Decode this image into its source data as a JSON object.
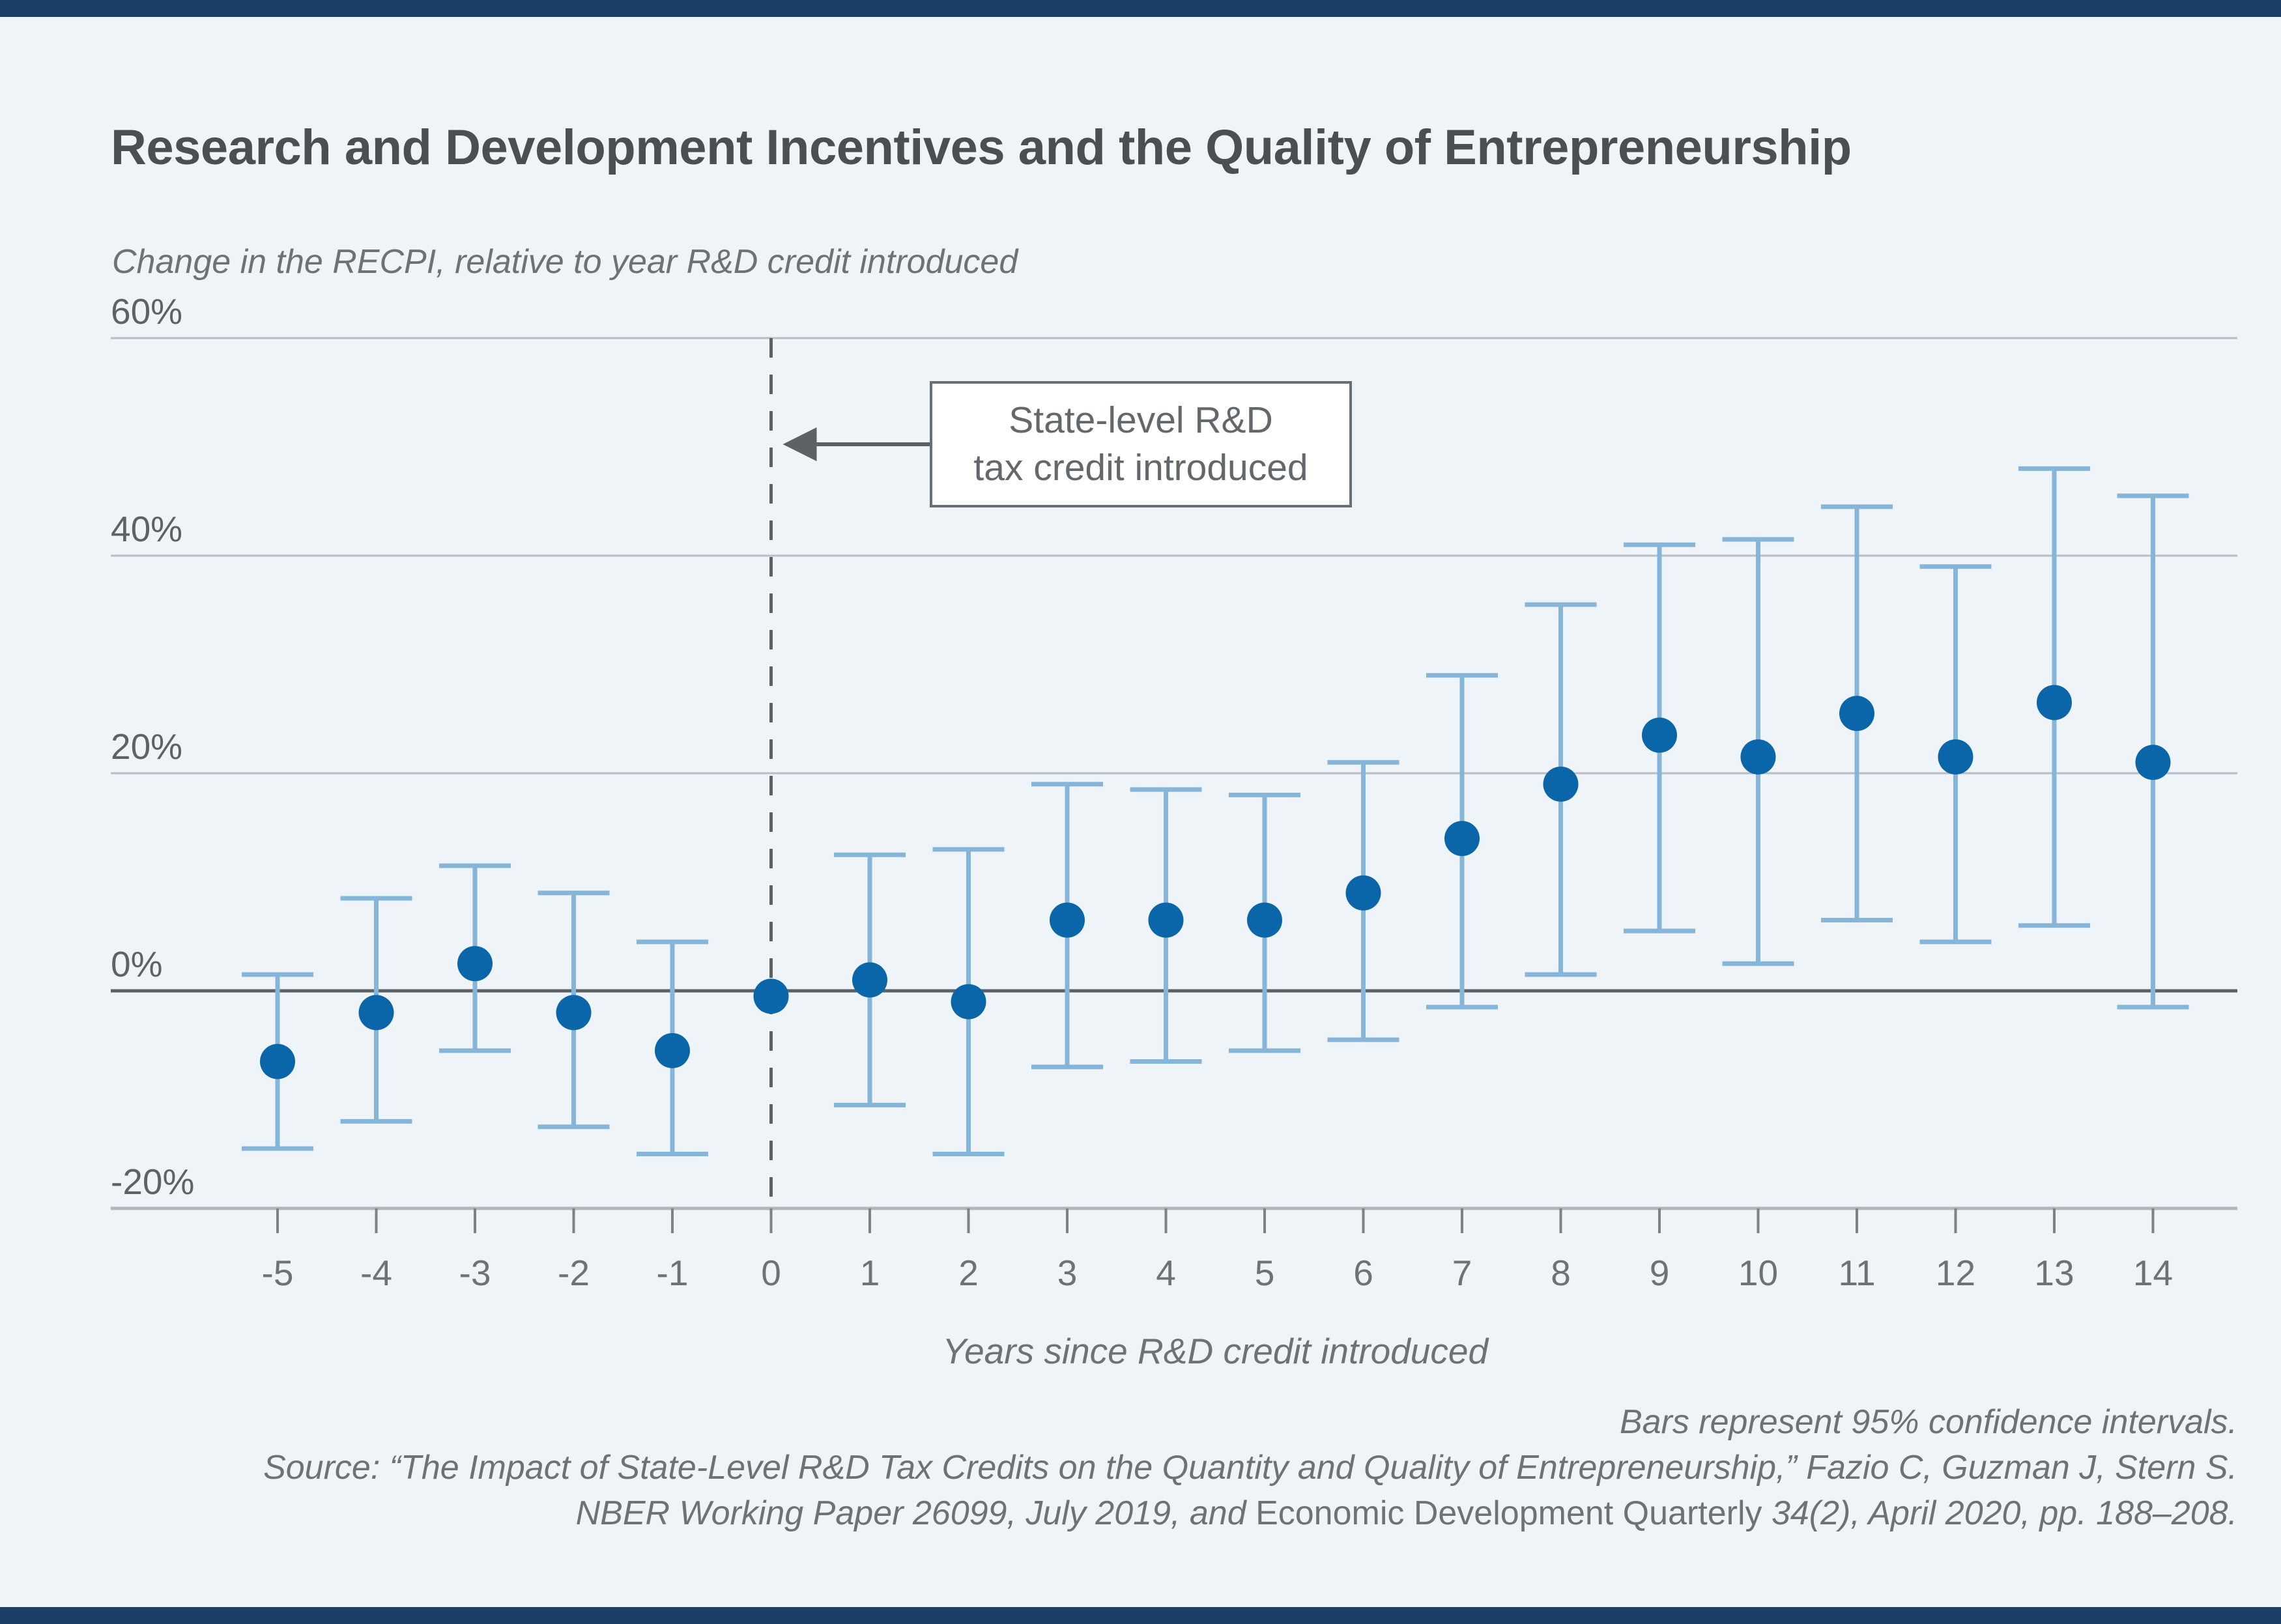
{
  "page": {
    "title": "Research and Development Incentives and the Quality of Entrepreneurship",
    "background_color": "#eff4f9",
    "accent_bar_color": "#1a4068"
  },
  "chart_data": {
    "type": "scatter",
    "title": "Research and Development Incentives and the Quality of Entrepreneurship",
    "y_axis_title": "Change in the RECPI, relative to year R&D credit introduced",
    "x_axis_label": "Years since R&D credit introduced",
    "legend_position": "none",
    "grid": "horizontal",
    "ylim": [
      -20,
      60
    ],
    "y_ticks": [
      {
        "value": 60,
        "label": "60%"
      },
      {
        "value": 40,
        "label": "40%"
      },
      {
        "value": 20,
        "label": "20%"
      },
      {
        "value": 0,
        "label": "0%"
      },
      {
        "value": -20,
        "label": "-20%"
      }
    ],
    "x_ticks": [
      -5,
      -4,
      -3,
      -2,
      -1,
      0,
      1,
      2,
      3,
      4,
      5,
      6,
      7,
      8,
      9,
      10,
      11,
      12,
      13,
      14
    ],
    "series": [
      {
        "name": "Change in RECPI point estimate with 95% confidence interval",
        "points": [
          {
            "x": -5,
            "y": -6.5,
            "ci_low": -14.5,
            "ci_high": 1.5
          },
          {
            "x": -4,
            "y": -2,
            "ci_low": -12,
            "ci_high": 8.5
          },
          {
            "x": -3,
            "y": 2.5,
            "ci_low": -5.5,
            "ci_high": 11.5
          },
          {
            "x": -2,
            "y": -2,
            "ci_low": -12.5,
            "ci_high": 9
          },
          {
            "x": -1,
            "y": -5.5,
            "ci_low": -15,
            "ci_high": 4.5
          },
          {
            "x": 0,
            "y": -0.5,
            "ci_low": null,
            "ci_high": null
          },
          {
            "x": 1,
            "y": 1,
            "ci_low": -10.5,
            "ci_high": 12.5
          },
          {
            "x": 2,
            "y": -1,
            "ci_low": -15,
            "ci_high": 13
          },
          {
            "x": 3,
            "y": 6.5,
            "ci_low": -7,
            "ci_high": 19
          },
          {
            "x": 4,
            "y": 6.5,
            "ci_low": -6.5,
            "ci_high": 18.5
          },
          {
            "x": 5,
            "y": 6.5,
            "ci_low": -5.5,
            "ci_high": 18
          },
          {
            "x": 6,
            "y": 9,
            "ci_low": -4.5,
            "ci_high": 21
          },
          {
            "x": 7,
            "y": 14,
            "ci_low": -1.5,
            "ci_high": 29
          },
          {
            "x": 8,
            "y": 19,
            "ci_low": 1.5,
            "ci_high": 35.5
          },
          {
            "x": 9,
            "y": 23.5,
            "ci_low": 5.5,
            "ci_high": 41
          },
          {
            "x": 10,
            "y": 21.5,
            "ci_low": 2.5,
            "ci_high": 41.5
          },
          {
            "x": 11,
            "y": 25.5,
            "ci_low": 6.5,
            "ci_high": 44.5
          },
          {
            "x": 12,
            "y": 21.5,
            "ci_low": 4.5,
            "ci_high": 39
          },
          {
            "x": 13,
            "y": 26.5,
            "ci_low": 6,
            "ci_high": 48
          },
          {
            "x": 14,
            "y": 21,
            "ci_low": -1.5,
            "ci_high": 45.5
          }
        ]
      }
    ],
    "annotation": {
      "line1": "State-level R&D",
      "line2": "tax credit introduced",
      "arrow_points_to_x": 0
    },
    "colors": {
      "point": "#0a66a8",
      "error_bar": "#86b5da",
      "gridline": "#b7bdc3",
      "zero_line": "#5c6166",
      "axis_line": "#b0b6bc",
      "dashed_line": "#5c6166",
      "tick": "#7d8287",
      "tick_label": "#5d6267",
      "axis_label_text": "#6d7277"
    }
  },
  "caption": {
    "note": "Bars represent 95% confidence intervals.",
    "source_line1": "Source: “The Impact of State-Level R&D Tax Credits on the Quantity and Quality of Entrepreneurship,” Fazio C, Guzman J, Stern S.",
    "source_line2_pre": "NBER Working Paper 26099, July 2019, and ",
    "source_line2_journal": "Economic Development Quarterly",
    "source_line2_post": " 34(2), April 2020, pp. 188–208."
  }
}
